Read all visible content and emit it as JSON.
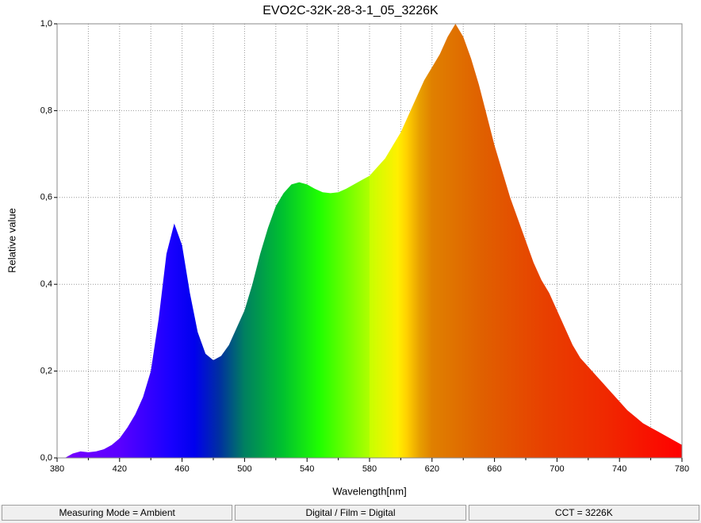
{
  "chart_data": {
    "type": "area",
    "title": "EVO2C-32K-28-3-1_05_3226K",
    "x_label": "Wavelength[nm]",
    "y_label": "Relative value",
    "x": [
      385,
      390,
      395,
      400,
      405,
      410,
      415,
      420,
      425,
      430,
      435,
      440,
      445,
      450,
      455,
      460,
      465,
      470,
      475,
      480,
      485,
      490,
      495,
      500,
      505,
      510,
      515,
      520,
      525,
      530,
      535,
      540,
      545,
      550,
      555,
      560,
      565,
      570,
      575,
      580,
      585,
      590,
      595,
      600,
      605,
      610,
      615,
      620,
      625,
      630,
      635,
      640,
      645,
      650,
      655,
      660,
      665,
      670,
      675,
      680,
      685,
      690,
      695,
      700,
      705,
      710,
      715,
      720,
      725,
      730,
      735,
      740,
      745,
      750,
      755,
      760,
      765,
      770,
      775,
      780
    ],
    "values": [
      0,
      0.01,
      0.015,
      0.013,
      0.015,
      0.02,
      0.03,
      0.045,
      0.07,
      0.1,
      0.14,
      0.2,
      0.32,
      0.47,
      0.54,
      0.49,
      0.38,
      0.29,
      0.24,
      0.225,
      0.235,
      0.26,
      0.3,
      0.34,
      0.4,
      0.47,
      0.53,
      0.58,
      0.61,
      0.63,
      0.635,
      0.63,
      0.62,
      0.612,
      0.61,
      0.612,
      0.62,
      0.63,
      0.64,
      0.65,
      0.67,
      0.69,
      0.72,
      0.75,
      0.79,
      0.83,
      0.87,
      0.9,
      0.93,
      0.97,
      1.0,
      0.97,
      0.92,
      0.86,
      0.79,
      0.72,
      0.66,
      0.6,
      0.55,
      0.5,
      0.45,
      0.41,
      0.38,
      0.34,
      0.3,
      0.26,
      0.23,
      0.21,
      0.19,
      0.17,
      0.15,
      0.13,
      0.11,
      0.095,
      0.08,
      0.07,
      0.06,
      0.05,
      0.04,
      0.03
    ],
    "xlim": [
      380,
      780
    ],
    "ylim": [
      0,
      1
    ],
    "xticks": [
      380,
      420,
      460,
      500,
      540,
      580,
      620,
      660,
      700,
      740,
      780
    ],
    "xminor": [
      400,
      440,
      480,
      520,
      560,
      600,
      640,
      680,
      720,
      760
    ],
    "yticks": [
      {
        "value": 0,
        "label": "0,0"
      },
      {
        "value": 0.2,
        "label": "0,2"
      },
      {
        "value": 0.4,
        "label": "0,4"
      },
      {
        "value": 0.6,
        "label": "0,6"
      },
      {
        "value": 0.8,
        "label": "0,8"
      },
      {
        "value": 1,
        "label": "1,0"
      }
    ],
    "grid": true
  },
  "status_bar": [
    "Measuring Mode = Ambient",
    "Digital / Film = Digital",
    "CCT = 3226K"
  ]
}
